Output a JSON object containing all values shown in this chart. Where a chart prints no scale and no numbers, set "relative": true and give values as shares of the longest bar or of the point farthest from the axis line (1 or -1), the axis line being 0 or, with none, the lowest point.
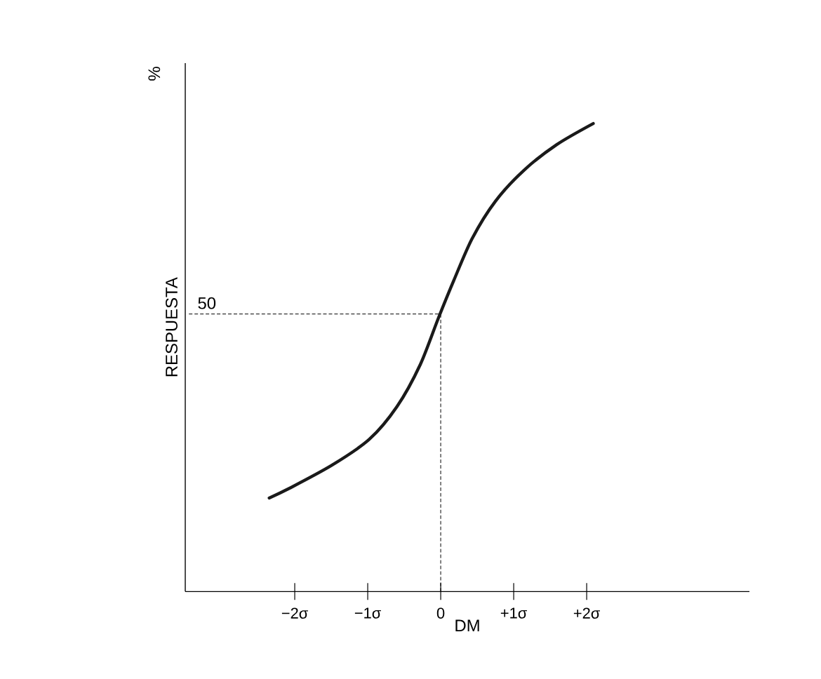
{
  "chart_data": {
    "type": "line",
    "relative": true,
    "xlabel": "DM",
    "ylabel": "RESPUESTA",
    "annotations": [
      "%",
      "50"
    ],
    "xlim": [
      -3.5,
      4.23
    ],
    "xticks": [
      {
        "value": -2,
        "label": "−2σ"
      },
      {
        "value": -1,
        "label": "−1σ"
      },
      0,
      {
        "value": 1,
        "label": "+1σ"
      },
      {
        "value": 2,
        "label": "+2σ"
      }
    ],
    "ref_lines": [
      {
        "axis": "y",
        "value": 0.593,
        "line_style": "dashed"
      },
      {
        "axis": "x",
        "value": 0,
        "line_style": "dashed"
      }
    ],
    "series": [
      {
        "color": "#1a1a1a",
        "x": [
          -2.35,
          -2.08,
          -1.49,
          -0.98,
          -0.6,
          -0.28,
          -0.03,
          0.18,
          0.43,
          0.75,
          1.14,
          1.59,
          2.09
        ],
        "values": [
          0.2,
          0.22,
          0.27,
          0.325,
          0.395,
          0.485,
          0.585,
          0.665,
          0.754,
          0.834,
          0.9,
          0.955,
          1.0
        ]
      }
    ]
  }
}
